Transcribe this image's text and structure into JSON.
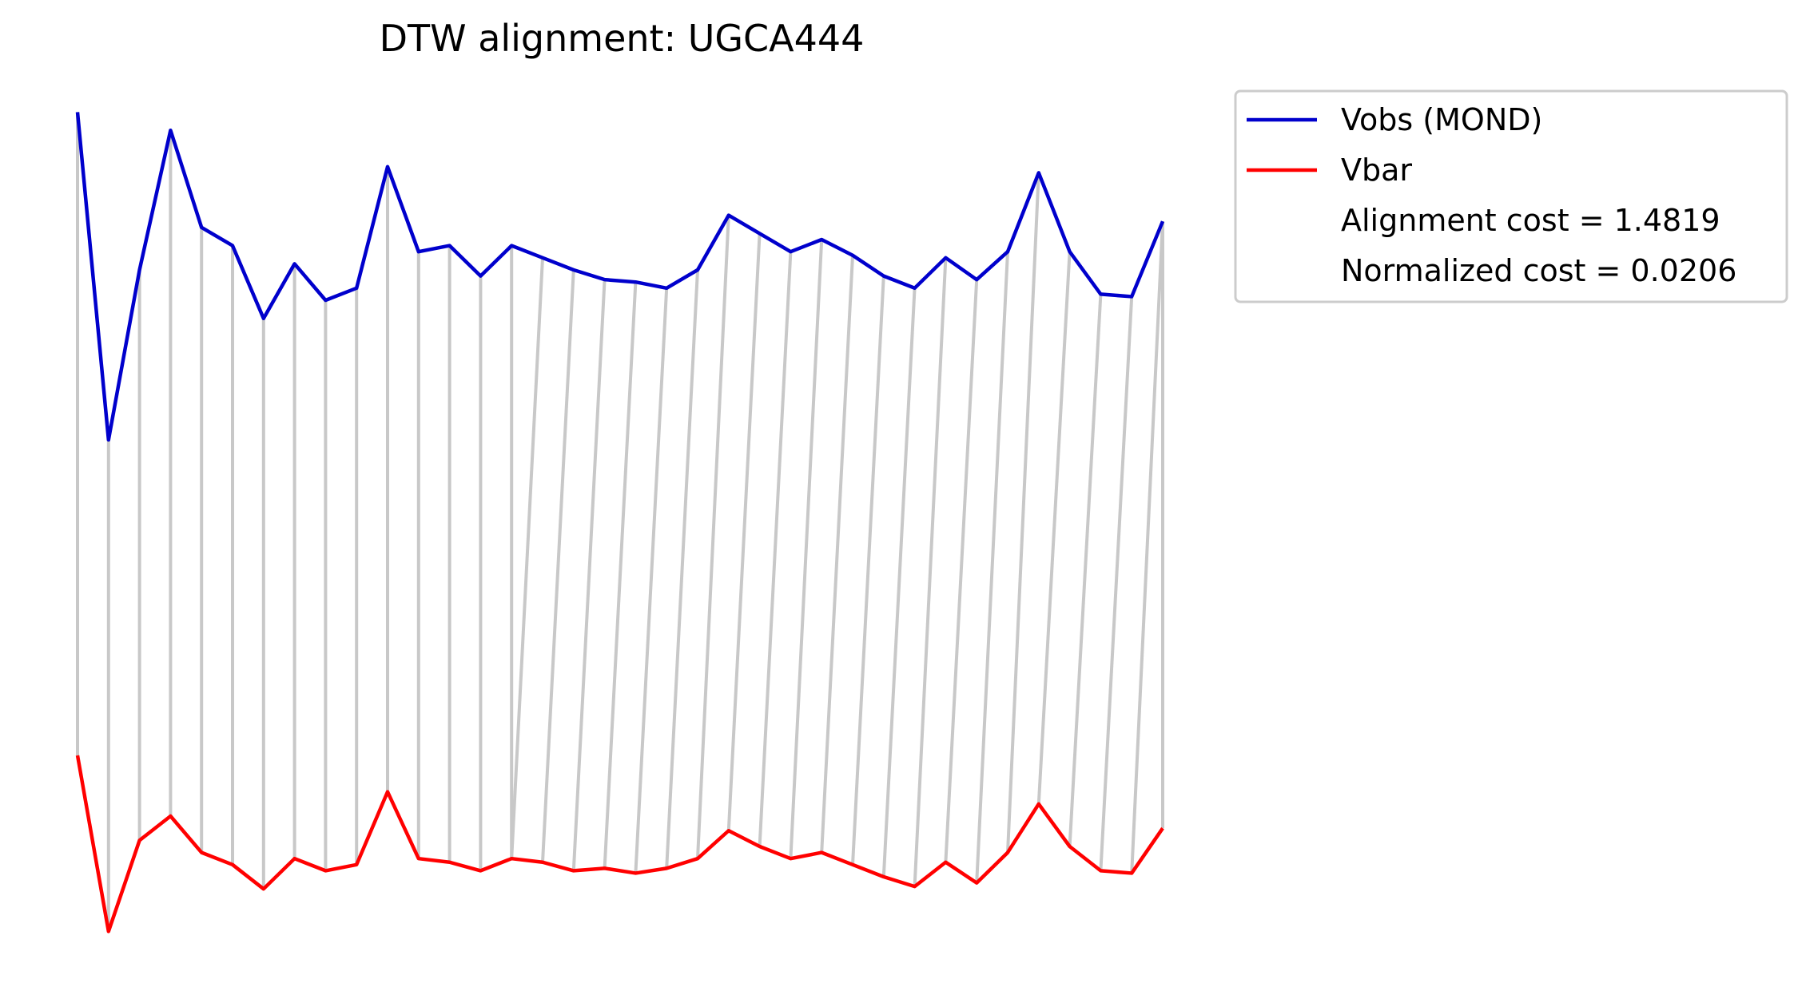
{
  "chart_data": {
    "type": "line",
    "title": "DTW alignment: UGCA444",
    "xlabel": "",
    "ylabel": "",
    "axes_visible": false,
    "grid": false,
    "legend_position": "outside-right-top",
    "series": [
      {
        "name": "Vobs (MOND)",
        "color": "#0000CC",
        "values": [
          0.5,
          -26.5,
          -12.5,
          -1.0,
          -9.0,
          -10.5,
          -16.5,
          -12.0,
          -15.0,
          -14.0,
          -4.0,
          -11.0,
          -10.5,
          -13.0,
          -10.5,
          -11.5,
          -12.5,
          -13.3,
          -13.5,
          -14.0,
          -12.5,
          -8.0,
          -9.5,
          -11.0,
          -10.0,
          -11.3,
          -13.0,
          -14.0,
          -11.5,
          -13.3,
          -11.0,
          -4.5,
          -11.0,
          -14.5,
          -14.7,
          -8.5
        ]
      },
      {
        "name": "Vbar",
        "color": "#FF0000",
        "values": [
          -52.5,
          -67.0,
          -59.5,
          -57.5,
          -60.5,
          -61.5,
          -63.5,
          -61.0,
          -62.0,
          -61.5,
          -55.5,
          -61.0,
          -61.3,
          -62.0,
          -61.0,
          -61.3,
          -62.0,
          -61.8,
          -62.2,
          -61.8,
          -61.0,
          -58.7,
          -60.0,
          -61.0,
          -60.5,
          -61.5,
          -62.5,
          -63.3,
          -61.3,
          -63.0,
          -60.5,
          -56.5,
          -60.0,
          -62.0,
          -62.2,
          -58.5
        ]
      }
    ],
    "x": [
      0,
      1,
      2,
      3,
      4,
      5,
      6,
      7,
      8,
      9,
      10,
      11,
      12,
      13,
      14,
      15,
      16,
      17,
      18,
      19,
      20,
      21,
      22,
      23,
      24,
      25,
      26,
      27,
      28,
      29,
      30,
      31,
      32,
      33,
      34,
      35
    ],
    "alignment_path": [
      [
        0,
        0
      ],
      [
        1,
        1
      ],
      [
        2,
        2
      ],
      [
        3,
        3
      ],
      [
        4,
        4
      ],
      [
        5,
        5
      ],
      [
        6,
        6
      ],
      [
        7,
        7
      ],
      [
        8,
        8
      ],
      [
        9,
        9
      ],
      [
        10,
        10
      ],
      [
        11,
        11
      ],
      [
        12,
        12
      ],
      [
        13,
        13
      ],
      [
        14,
        14
      ],
      [
        15,
        14
      ],
      [
        16,
        15
      ],
      [
        17,
        16
      ],
      [
        18,
        17
      ],
      [
        19,
        18
      ],
      [
        20,
        19
      ],
      [
        21,
        20
      ],
      [
        22,
        21
      ],
      [
        23,
        22
      ],
      [
        24,
        23
      ],
      [
        25,
        24
      ],
      [
        26,
        25
      ],
      [
        27,
        26
      ],
      [
        28,
        27
      ],
      [
        29,
        28
      ],
      [
        30,
        29
      ],
      [
        31,
        30
      ],
      [
        32,
        31
      ],
      [
        33,
        32
      ],
      [
        34,
        33
      ],
      [
        35,
        34
      ],
      [
        35,
        35
      ]
    ],
    "legend_entries": [
      {
        "label": "Vobs (MOND)",
        "color": "#0000CC",
        "has_line": true
      },
      {
        "label": "Vbar",
        "color": "#FF0000",
        "has_line": true
      },
      {
        "label": "Alignment cost = 1.4819",
        "color": "",
        "has_line": false
      },
      {
        "label": "Normalized cost = 0.0206",
        "color": "",
        "has_line": false
      }
    ],
    "alignment_line_color": "#C8C8C8"
  }
}
